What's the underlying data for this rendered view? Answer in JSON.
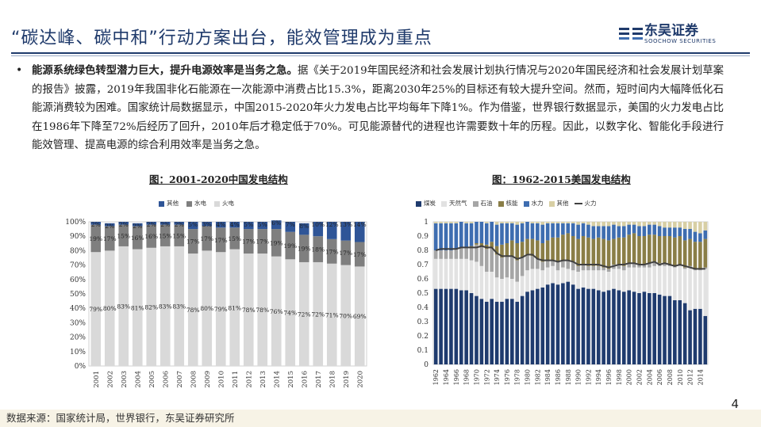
{
  "header": {
    "title": "“碳达峰、碳中和”行动方案出台，能效管理成为重点",
    "logo_cn": "东吴证券",
    "logo_en": "SOOCHOW SECURITIES"
  },
  "body": {
    "bullet": "•",
    "lead": "能源系统绿色转型潜力巨大，提升电源效率是当务之急。",
    "text": "据《关于2019年国民经济和社会发展计划执行情况与2020年国民经济和社会发展计划草案的报告》披露，2019年我国非化石能源在一次能源中消费占比15.3%，距离2030年25%的目标还有较大提升空间。然而，短时间内大幅降低化石能源消费较为困难。国家统计局数据显示，中国2015-2020年火力发电占比平均每年下降1%。作为借鉴，世界银行数据显示，美国的火力发电占比在1986年下降至72%后经历了回升，2010年后才稳定低于70%。可见能源替代的进程也许需要数十年的历程。因此，以数字化、智能化手段进行能效管理、提高电源的综合利用效率是当务之急。"
  },
  "colors": {
    "brand": "#1f3a6b",
    "coal": "#1f3b6e",
    "gas": "#e2e2e2",
    "oil": "#a6a6a6",
    "nuclear": "#8a7e47",
    "hydro": "#3e6db0",
    "other_us": "#d8cfa4",
    "thermal_line": "#404040",
    "cn_other": "#2f5597",
    "cn_hydro": "#7f7f7f",
    "cn_thermal": "#d9d9d9"
  },
  "chart_data": [
    {
      "type": "bar",
      "stacked": true,
      "title": "图：2001-2020中国发电结构",
      "legend": [
        "其他",
        "水电",
        "火电"
      ],
      "categories": [
        "2001",
        "2002",
        "2003",
        "2004",
        "2005",
        "2006",
        "2007",
        "2008",
        "2009",
        "2010",
        "2011",
        "2012",
        "2013",
        "2014",
        "2015",
        "2016",
        "2017",
        "2018",
        "2019",
        "2020"
      ],
      "series": [
        {
          "name": "火电",
          "values": [
            79,
            80,
            83,
            81,
            82,
            83,
            83,
            78,
            80,
            79,
            81,
            78,
            78,
            76,
            74,
            72,
            72,
            71,
            70,
            69
          ],
          "labels": [
            "79%",
            "80%",
            "83%",
            "81%",
            "82%",
            "83%",
            "83%",
            "78%",
            "80%",
            "79%",
            "81%",
            "78%",
            "78%",
            "76%",
            "74%",
            "72%",
            "72%",
            "71%",
            "70%",
            "69%"
          ]
        },
        {
          "name": "水电",
          "values": [
            19,
            17,
            15,
            16,
            16,
            15,
            15,
            17,
            17,
            17,
            15,
            17,
            17,
            19,
            19,
            19,
            18,
            17,
            17,
            17
          ],
          "labels": [
            "19%",
            "17%",
            "15%",
            "16%",
            "16%",
            "15%",
            "15%",
            "17%",
            "17%",
            "17%",
            "15%",
            "17%",
            "17%",
            "19%",
            "19%",
            "19%",
            "18%",
            "17%",
            "17%",
            "17%"
          ]
        },
        {
          "name": "其他",
          "values": [
            2,
            2,
            2,
            2,
            2,
            2,
            2,
            5,
            3,
            4,
            4,
            5,
            5,
            6,
            7,
            8,
            10,
            12,
            13,
            14
          ],
          "labels": [
            "2%",
            "2%",
            "2%",
            "2%",
            "2%",
            "2%",
            "2%",
            "5%",
            "3%",
            "4%",
            "4%",
            "5%",
            "5%",
            "6%",
            "7%",
            "8%",
            "10%",
            "12%",
            "13%",
            "14%"
          ]
        }
      ],
      "yticks": [
        "0%",
        "10%",
        "20%",
        "30%",
        "40%",
        "50%",
        "60%",
        "70%",
        "80%",
        "90%",
        "100%"
      ],
      "ylim": [
        0,
        100
      ]
    },
    {
      "type": "bar",
      "stacked": true,
      "title": "图：1962-2015美国发电结构",
      "legend": [
        "煤炭",
        "天然气",
        "石油",
        "核能",
        "水力",
        "其他",
        "火力"
      ],
      "x": [
        1962,
        1963,
        1964,
        1965,
        1966,
        1967,
        1968,
        1969,
        1970,
        1971,
        1972,
        1973,
        1974,
        1975,
        1976,
        1977,
        1978,
        1979,
        1980,
        1981,
        1982,
        1983,
        1984,
        1985,
        1986,
        1987,
        1988,
        1989,
        1990,
        1991,
        1992,
        1993,
        1994,
        1995,
        1996,
        1997,
        1998,
        1999,
        2000,
        2001,
        2002,
        2003,
        2004,
        2005,
        2006,
        2007,
        2008,
        2009,
        2010,
        2011,
        2012,
        2013,
        2014,
        2015
      ],
      "xticks": [
        "1962",
        "1964",
        "1966",
        "1968",
        "1970",
        "1972",
        "1974",
        "1976",
        "1978",
        "1980",
        "1982",
        "1984",
        "1986",
        "1988",
        "1990",
        "1992",
        "1994",
        "1996",
        "1998",
        "2000",
        "2002",
        "2004",
        "2006",
        "2008",
        "2010",
        "2012",
        "2014"
      ],
      "yticks": [
        "0",
        "0.1",
        "0.2",
        "0.3",
        "0.4",
        "0.5",
        "0.6",
        "0.7",
        "0.8",
        "0.9",
        "1"
      ],
      "ylim": [
        0,
        1
      ],
      "series": [
        {
          "name": "煤炭",
          "values": [
            0.53,
            0.53,
            0.53,
            0.53,
            0.53,
            0.52,
            0.52,
            0.5,
            0.48,
            0.46,
            0.44,
            0.46,
            0.44,
            0.44,
            0.46,
            0.46,
            0.44,
            0.48,
            0.51,
            0.52,
            0.53,
            0.54,
            0.56,
            0.57,
            0.56,
            0.57,
            0.58,
            0.56,
            0.53,
            0.54,
            0.53,
            0.53,
            0.52,
            0.51,
            0.52,
            0.53,
            0.52,
            0.51,
            0.52,
            0.51,
            0.5,
            0.51,
            0.5,
            0.5,
            0.49,
            0.48,
            0.48,
            0.45,
            0.45,
            0.43,
            0.38,
            0.39,
            0.39,
            0.34
          ]
        },
        {
          "name": "天然气",
          "values": [
            0.21,
            0.21,
            0.21,
            0.21,
            0.21,
            0.22,
            0.22,
            0.23,
            0.24,
            0.23,
            0.21,
            0.19,
            0.17,
            0.16,
            0.15,
            0.14,
            0.14,
            0.14,
            0.15,
            0.15,
            0.14,
            0.12,
            0.12,
            0.12,
            0.1,
            0.11,
            0.09,
            0.1,
            0.12,
            0.12,
            0.13,
            0.13,
            0.14,
            0.15,
            0.13,
            0.14,
            0.15,
            0.15,
            0.16,
            0.17,
            0.18,
            0.17,
            0.18,
            0.19,
            0.2,
            0.21,
            0.21,
            0.23,
            0.24,
            0.24,
            0.3,
            0.27,
            0.27,
            0.33
          ]
        },
        {
          "name": "石油",
          "values": [
            0.06,
            0.06,
            0.06,
            0.06,
            0.07,
            0.08,
            0.08,
            0.09,
            0.12,
            0.14,
            0.16,
            0.17,
            0.16,
            0.15,
            0.15,
            0.16,
            0.15,
            0.13,
            0.11,
            0.09,
            0.07,
            0.06,
            0.05,
            0.04,
            0.06,
            0.05,
            0.06,
            0.06,
            0.04,
            0.04,
            0.03,
            0.03,
            0.03,
            0.02,
            0.02,
            0.03,
            0.03,
            0.03,
            0.03,
            0.03,
            0.02,
            0.02,
            0.03,
            0.03,
            0.02,
            0.02,
            0.01,
            0.01,
            0.01,
            0.01,
            0.01,
            0.01,
            0.01,
            0.01
          ]
        },
        {
          "name": "核能",
          "values": [
            0.0,
            0.0,
            0.0,
            0.0,
            0.0,
            0.0,
            0.0,
            0.01,
            0.01,
            0.02,
            0.03,
            0.04,
            0.06,
            0.09,
            0.09,
            0.11,
            0.12,
            0.11,
            0.11,
            0.12,
            0.13,
            0.13,
            0.14,
            0.16,
            0.17,
            0.18,
            0.19,
            0.18,
            0.19,
            0.2,
            0.2,
            0.19,
            0.2,
            0.2,
            0.2,
            0.18,
            0.19,
            0.2,
            0.2,
            0.21,
            0.2,
            0.2,
            0.2,
            0.19,
            0.19,
            0.19,
            0.2,
            0.2,
            0.2,
            0.19,
            0.19,
            0.19,
            0.19,
            0.2
          ]
        },
        {
          "name": "水力",
          "values": [
            0.19,
            0.19,
            0.19,
            0.19,
            0.18,
            0.18,
            0.17,
            0.16,
            0.15,
            0.15,
            0.15,
            0.14,
            0.15,
            0.15,
            0.14,
            0.12,
            0.13,
            0.13,
            0.12,
            0.11,
            0.12,
            0.13,
            0.12,
            0.1,
            0.1,
            0.08,
            0.07,
            0.09,
            0.1,
            0.09,
            0.09,
            0.09,
            0.08,
            0.09,
            0.1,
            0.1,
            0.08,
            0.08,
            0.07,
            0.06,
            0.07,
            0.07,
            0.07,
            0.07,
            0.07,
            0.06,
            0.06,
            0.07,
            0.06,
            0.08,
            0.07,
            0.07,
            0.06,
            0.06
          ]
        },
        {
          "name": "其他",
          "values": [
            0.01,
            0.01,
            0.01,
            0.01,
            0.01,
            0.0,
            0.01,
            0.01,
            0.0,
            0.0,
            0.01,
            0.0,
            0.02,
            0.01,
            0.01,
            0.01,
            0.02,
            0.01,
            0.0,
            0.01,
            0.01,
            0.02,
            0.01,
            0.01,
            0.01,
            0.01,
            0.01,
            0.01,
            0.02,
            0.01,
            0.02,
            0.03,
            0.03,
            0.03,
            0.03,
            0.02,
            0.03,
            0.03,
            0.02,
            0.02,
            0.03,
            0.03,
            0.02,
            0.02,
            0.03,
            0.04,
            0.04,
            0.04,
            0.04,
            0.05,
            0.05,
            0.07,
            0.08,
            0.06
          ]
        },
        {
          "name": "火力",
          "type": "line",
          "values": [
            0.8,
            0.81,
            0.81,
            0.81,
            0.81,
            0.82,
            0.82,
            0.82,
            0.82,
            0.83,
            0.82,
            0.82,
            0.78,
            0.76,
            0.76,
            0.76,
            0.74,
            0.75,
            0.77,
            0.77,
            0.74,
            0.73,
            0.73,
            0.73,
            0.72,
            0.73,
            0.73,
            0.72,
            0.7,
            0.7,
            0.7,
            0.7,
            0.7,
            0.69,
            0.68,
            0.69,
            0.7,
            0.7,
            0.71,
            0.71,
            0.7,
            0.7,
            0.71,
            0.72,
            0.7,
            0.71,
            0.7,
            0.69,
            0.7,
            0.69,
            0.68,
            0.67,
            0.67,
            0.67
          ]
        }
      ]
    }
  ],
  "footer": {
    "source": "数据来源：国家统计局，世界银行，东吴证券研究所",
    "page": "4"
  }
}
